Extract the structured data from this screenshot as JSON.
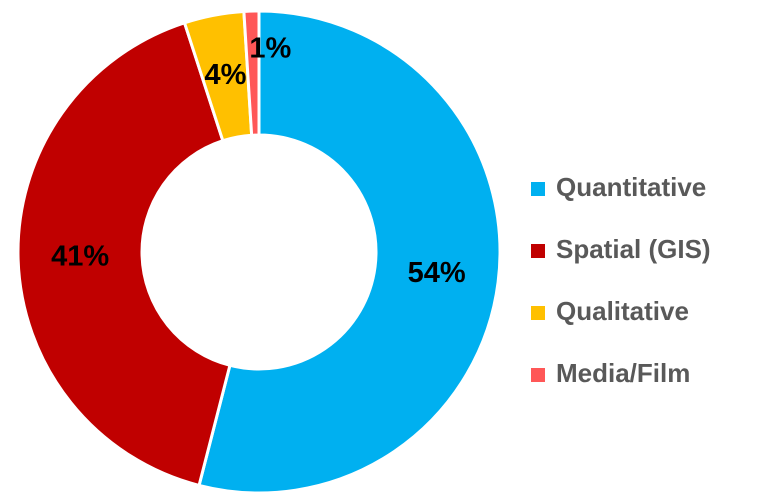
{
  "chart_data": {
    "type": "donut",
    "categories": [
      "Quantitative",
      "Spatial (GIS)",
      "Qualitative",
      "Media/Film"
    ],
    "values": [
      54,
      41,
      4,
      1
    ],
    "value_labels": [
      "54%",
      "41%",
      "4%",
      "1%"
    ],
    "colors": [
      "#00b0f0",
      "#c00000",
      "#ffc000",
      "#ff5757"
    ],
    "legend": "right"
  }
}
